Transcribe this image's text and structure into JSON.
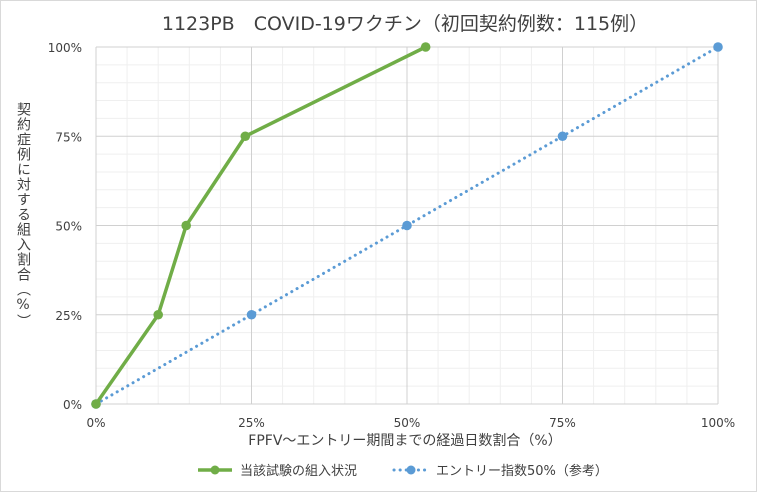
{
  "chart_data": {
    "type": "line",
    "title": "1123PB　COVID-19ワクチン（初回契約例数：115例）",
    "xlabel": "FPFV～エントリー期間までの経過日数割合（%）",
    "ylabel": "契約症例に対する組入割合（%）",
    "xlim": [
      0,
      100
    ],
    "ylim": [
      0,
      100
    ],
    "x_ticks": [
      "0%",
      "25%",
      "50%",
      "75%",
      "100%"
    ],
    "y_ticks": [
      "0%",
      "25%",
      "50%",
      "75%",
      "100%"
    ],
    "grid": true,
    "legend_position": "bottom",
    "series": [
      {
        "name": "当該試験の組入状況",
        "color": "#70ad47",
        "style": "solid",
        "points": [
          [
            0,
            0
          ],
          [
            10,
            25
          ],
          [
            14.5,
            50
          ],
          [
            24,
            75
          ],
          [
            53,
            100
          ]
        ]
      },
      {
        "name": "エントリー指数50%（参考）",
        "color": "#5b9bd5",
        "style": "dotted",
        "points": [
          [
            0,
            0
          ],
          [
            25,
            25
          ],
          [
            50,
            50
          ],
          [
            75,
            75
          ],
          [
            100,
            100
          ]
        ]
      }
    ]
  }
}
